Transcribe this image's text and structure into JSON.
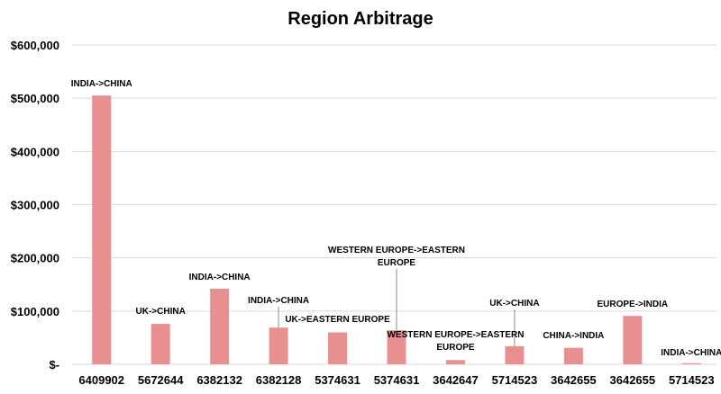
{
  "chart_data": {
    "type": "bar",
    "title": "Region Arbitrage",
    "xlabel": "",
    "ylabel": "",
    "ylim": [
      0,
      600000
    ],
    "yticks": [
      0,
      100000,
      200000,
      300000,
      400000,
      500000,
      600000
    ],
    "ytick_labels": [
      "$-",
      "$100,000",
      "$200,000",
      "$300,000",
      "$400,000",
      "$500,000",
      "$600,000"
    ],
    "grid": true,
    "legend": "none",
    "bar_color": "#e8908f",
    "categories": [
      "6409902",
      "5672644",
      "6382132",
      "6382128",
      "5374631",
      "5374631",
      "3642647",
      "5714523",
      "3642655",
      "3642655",
      "5714523"
    ],
    "values": [
      505000,
      76000,
      142000,
      69000,
      60000,
      64000,
      8000,
      34000,
      31000,
      91000,
      2000
    ],
    "data_labels": [
      [
        "INDIA->CHINA"
      ],
      [
        "UK->CHINA"
      ],
      [
        "INDIA->CHINA"
      ],
      [
        "INDIA->CHINA"
      ],
      [
        "UK->EASTERN EUROPE"
      ],
      [
        "WESTERN EUROPE->EASTERN",
        "EUROPE"
      ],
      [
        "WESTERN EUROPE->EASTERN",
        "EUROPE"
      ],
      [
        "UK->CHINA"
      ],
      [
        "CHINA->INDIA"
      ],
      [
        "EUROPE->INDIA"
      ],
      [
        "INDIA->CHINA"
      ]
    ]
  }
}
